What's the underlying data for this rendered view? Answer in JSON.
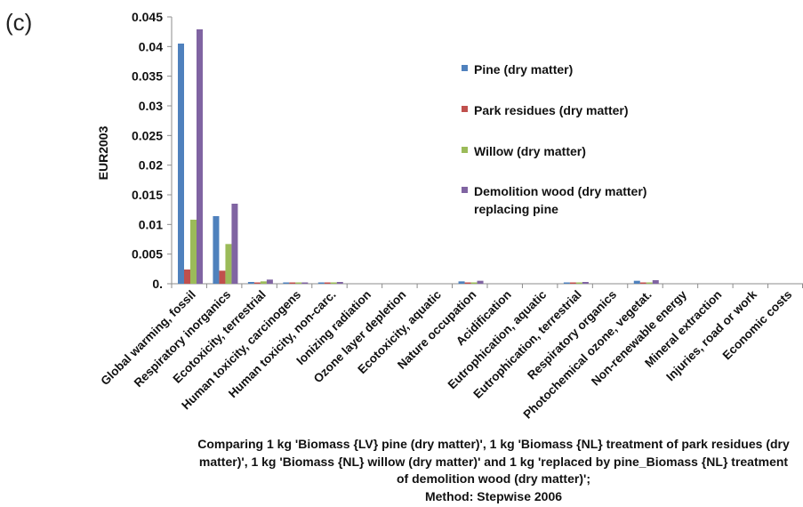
{
  "panel_label": "(c)",
  "chart_data": {
    "type": "bar",
    "ylabel": "EUR2003",
    "ylim": [
      0,
      0.045
    ],
    "yticks": [
      "0.",
      "0.005",
      "0.01",
      "0.015",
      "0.02",
      "0.025",
      "0.03",
      "0.035",
      "0.04",
      "0.045"
    ],
    "categories": [
      "Global warming, fossil",
      "Respiratory inorganics",
      "Ecotoxicity, terrestrial",
      "Human toxicity, carcinogens",
      "Human toxicity, non-carc.",
      "Ionizing radiation",
      "Ozone layer depletion",
      "Ecotoxicity, aquatic",
      "Nature occupation",
      "Acidification",
      "Eutrophication, aquatic",
      "Eutrophication, terrestrial",
      "Respiratory organics",
      "Photochemical ozone, vegetat.",
      "Non-renewable energy",
      "Mineral extraction",
      "Injuries, road or work",
      "Economic costs"
    ],
    "series": [
      {
        "name": "Pine (dry matter)",
        "color": "#4f81bd",
        "values": [
          0.0405,
          0.0114,
          0.0003,
          0.0001,
          0.0001,
          0,
          0,
          0,
          0.0004,
          0,
          0,
          0.0002,
          0,
          0.0005,
          0,
          0,
          0,
          0
        ]
      },
      {
        "name": "Park residues (dry matter)",
        "color": "#c0504d",
        "values": [
          0.0024,
          0.0022,
          0.0002,
          5e-05,
          5e-05,
          0,
          0,
          0,
          5e-05,
          0,
          0,
          5e-05,
          0,
          0.0001,
          0,
          0,
          0,
          0
        ]
      },
      {
        "name": "Willow (dry matter)",
        "color": "#9bbb59",
        "values": [
          0.0108,
          0.0067,
          0.0004,
          0.0001,
          0.0001,
          0,
          0,
          0,
          0.0001,
          0,
          0,
          0.0001,
          0,
          0.0002,
          0,
          0,
          0,
          0
        ]
      },
      {
        "name": "Demolition wood (dry matter)\nreplacing pine",
        "color": "#8064a2",
        "values": [
          0.0429,
          0.0135,
          0.0007,
          0.0002,
          0.0003,
          0,
          0,
          0,
          0.0005,
          0,
          0,
          0.0003,
          0,
          0.0006,
          0,
          0,
          0,
          0
        ]
      }
    ],
    "grid": false,
    "legend_position": "right"
  },
  "caption_lines": [
    "Comparing 1 kg 'Biomass {LV} pine (dry matter)', 1 kg 'Biomass {NL} treatment of park residues (dry",
    "matter)', 1 kg 'Biomass {NL} willow (dry matter)' and 1 kg 'replaced by pine_Biomass {NL} treatment",
    "of demolition wood (dry matter)';",
    "Method: Stepwise 2006"
  ]
}
